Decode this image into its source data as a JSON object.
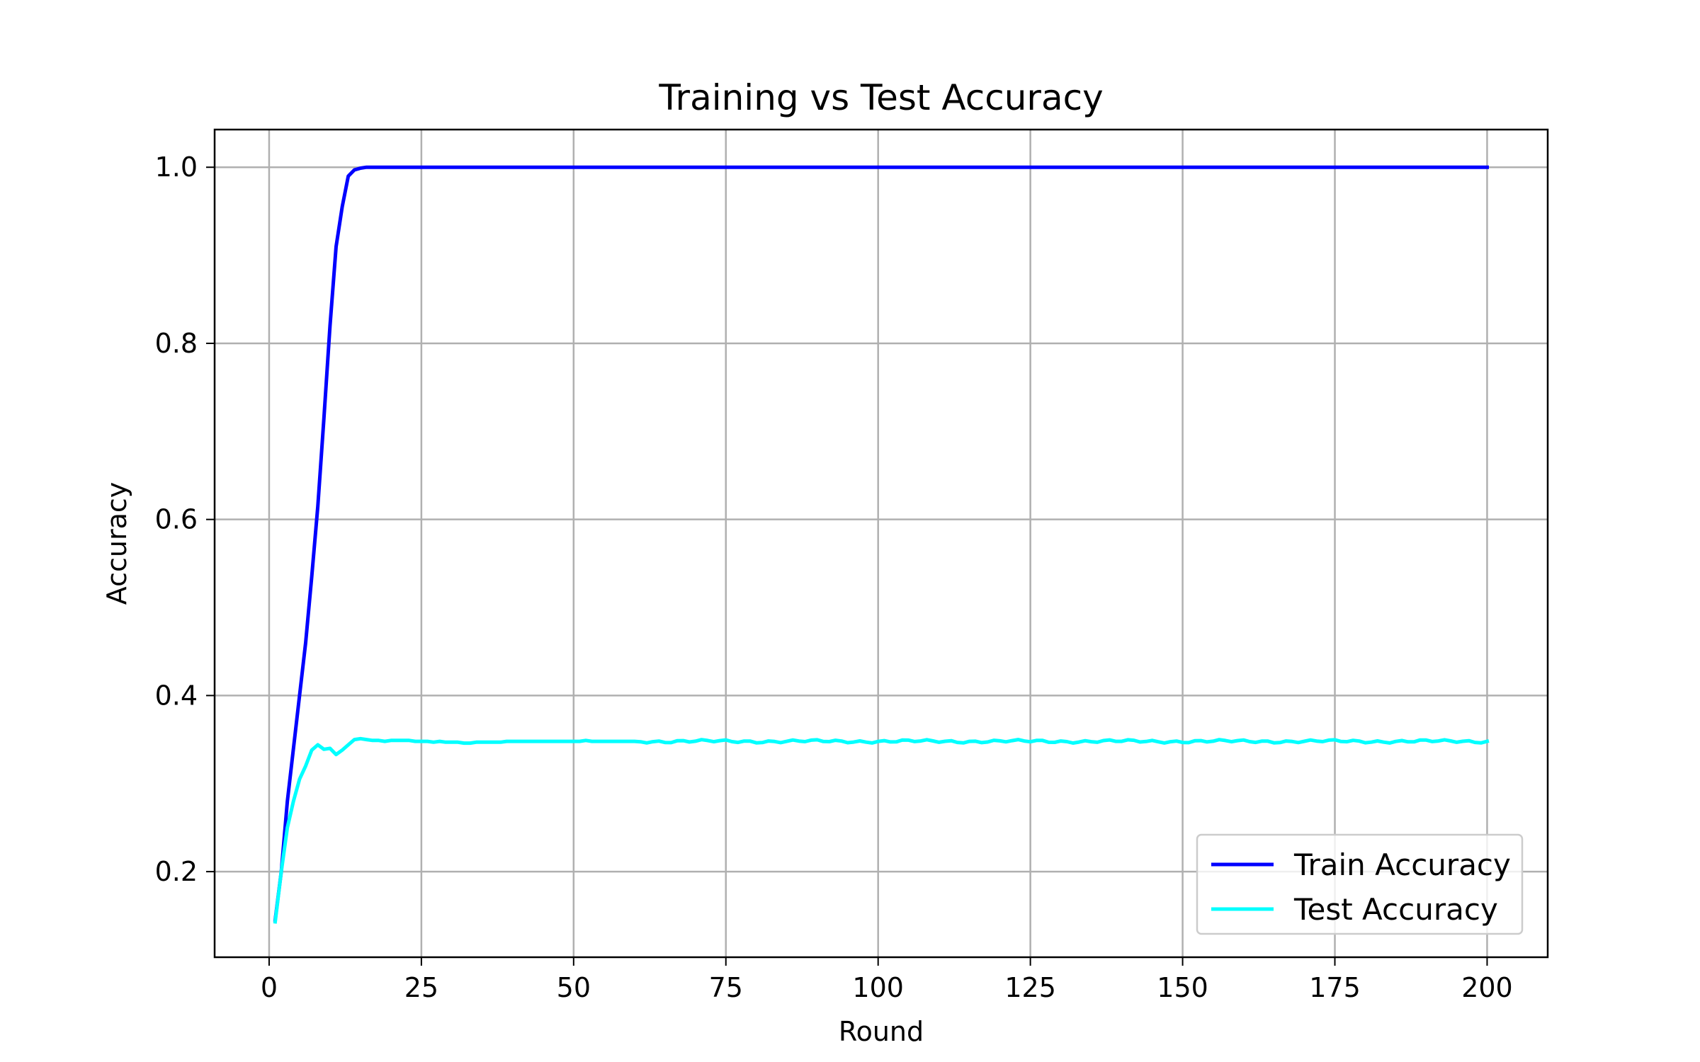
{
  "chart_data": {
    "type": "line",
    "title": "Training vs Test Accuracy",
    "xlabel": "Round",
    "ylabel": "Accuracy",
    "xlim": [
      -8.95,
      209.95
    ],
    "ylim": [
      0.1028,
      1.0428
    ],
    "xticks": [
      0,
      25,
      50,
      75,
      100,
      125,
      150,
      175,
      200
    ],
    "yticks": [
      0.2,
      0.4,
      0.6,
      0.8,
      1.0
    ],
    "xtick_labels": [
      "0",
      "25",
      "50",
      "75",
      "100",
      "125",
      "150",
      "175",
      "200"
    ],
    "ytick_labels": [
      "0.2",
      "0.4",
      "0.6",
      "0.8",
      "1.0"
    ],
    "grid": true,
    "legend_position": "lower-right",
    "series": [
      {
        "name": "Train Accuracy",
        "color": "#0000ff",
        "x_start": 1,
        "x_step": 1,
        "tail_value": 1.0,
        "tail_until": 200,
        "values": [
          0.145,
          0.2,
          0.28,
          0.34,
          0.4,
          0.46,
          0.535,
          0.615,
          0.715,
          0.82,
          0.91,
          0.955,
          0.99,
          0.997,
          0.999,
          1.0
        ]
      },
      {
        "name": "Test Accuracy",
        "color": "#00ffff",
        "x_start": 1,
        "x_step": 1,
        "tail_value": 0.348,
        "tail_until": 200,
        "values": [
          0.143,
          0.2,
          0.25,
          0.28,
          0.305,
          0.32,
          0.338,
          0.344,
          0.339,
          0.34,
          0.333,
          0.338,
          0.344,
          0.35,
          0.351,
          0.35,
          0.349,
          0.349,
          0.348,
          0.349,
          0.349,
          0.349,
          0.349,
          0.348,
          0.348,
          0.348,
          0.347,
          0.348,
          0.347,
          0.347,
          0.347,
          0.346,
          0.346,
          0.347,
          0.347,
          0.347,
          0.347,
          0.347,
          0.348,
          0.348,
          0.348,
          0.348,
          0.348,
          0.348,
          0.348,
          0.348,
          0.348,
          0.348,
          0.348,
          0.348,
          0.348,
          0.349,
          0.348,
          0.348,
          0.348,
          0.348,
          0.348,
          0.348,
          0.348,
          0.348
        ]
      }
    ]
  }
}
